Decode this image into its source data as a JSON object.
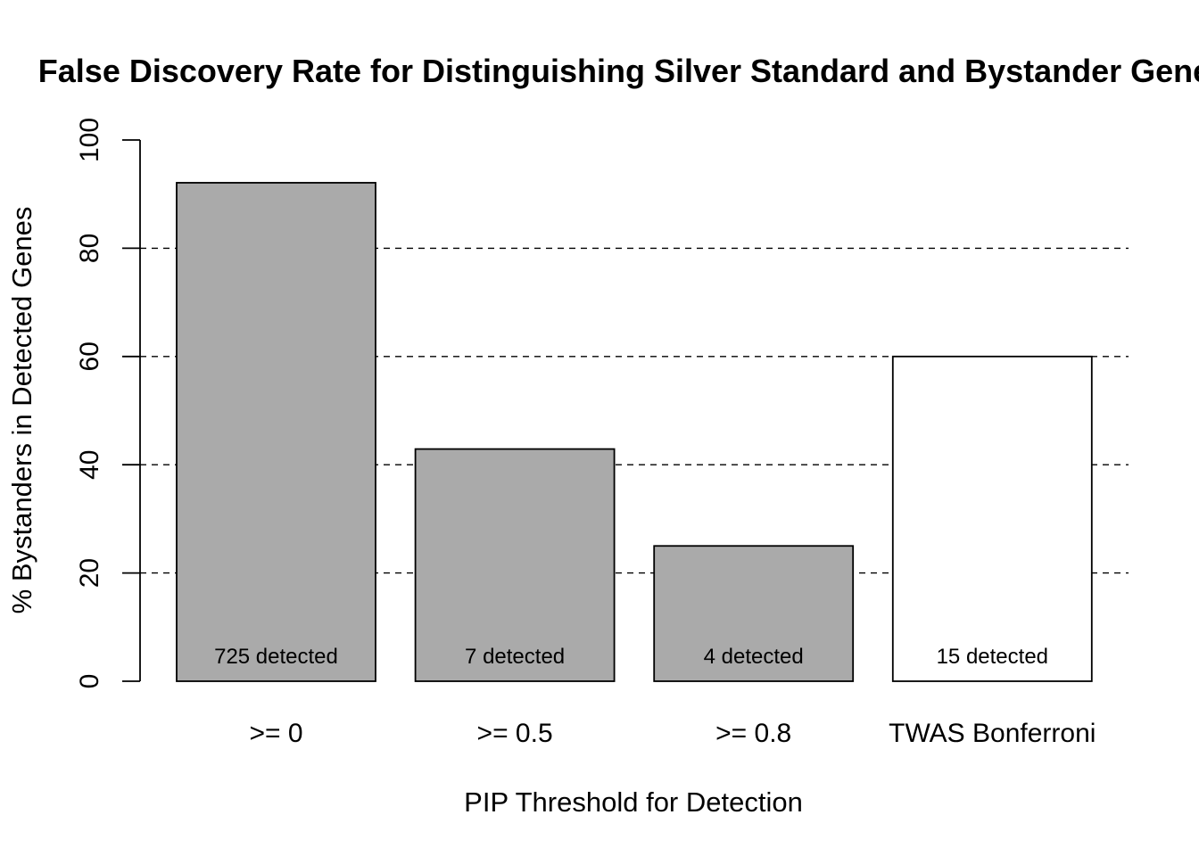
{
  "chart_data": {
    "type": "bar",
    "title": "False Discovery Rate for Distinguishing Silver Standard and Bystander Genes",
    "xlabel": "PIP Threshold for Detection",
    "ylabel": "% Bystanders in Detected Genes",
    "categories": [
      ">= 0",
      ">= 0.5",
      ">= 0.8",
      "TWAS Bonferroni"
    ],
    "values": [
      92.1,
      42.9,
      25.0,
      60.0
    ],
    "bar_labels": [
      "725 detected",
      "7 detected",
      "4 detected",
      "15 detected"
    ],
    "bar_colors": [
      "#aaaaaa",
      "#aaaaaa",
      "#aaaaaa",
      "#ffffff"
    ],
    "ylim": [
      0,
      100
    ],
    "yticks": [
      "0",
      "20",
      "40",
      "60",
      "80",
      "100"
    ],
    "gridlines": [
      20,
      40,
      60,
      80
    ],
    "grid": "horizontal dashed"
  }
}
